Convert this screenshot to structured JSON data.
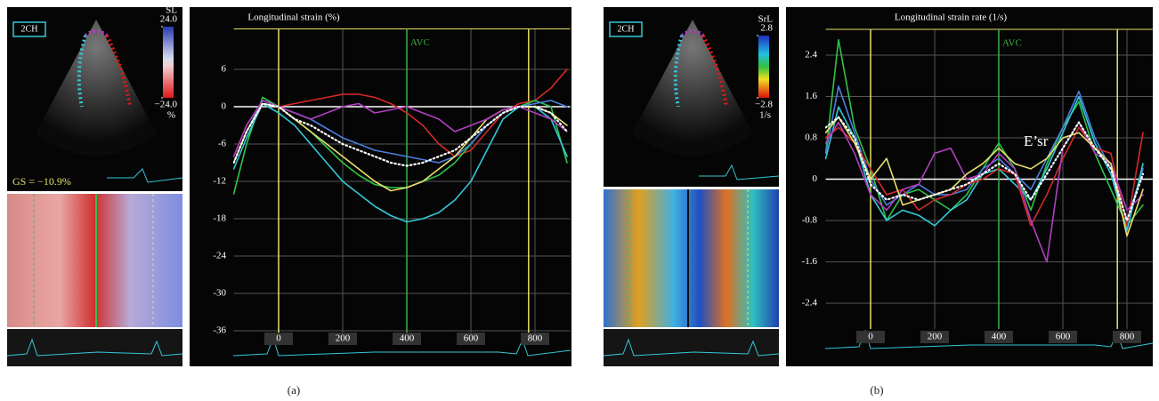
{
  "chart_data": [
    {
      "type": "line",
      "title": "Longitudinal strain (%)",
      "caption": "(a)",
      "view_label": "2CH",
      "annotation": "GS = −10.9%",
      "colorbar": {
        "title": "SL",
        "unit": "%",
        "ticks": [
          {
            "value": 24,
            "label": "24.0"
          },
          {
            "value": -24,
            "label": "−24.0"
          }
        ]
      },
      "xlim": [
        -140,
        910
      ],
      "ylim": [
        -37,
        12.5
      ],
      "xticks": [
        0,
        200,
        400,
        600,
        800
      ],
      "yticks": [
        6,
        0,
        -6,
        -12,
        -18,
        -24,
        -30,
        -36
      ],
      "grid": true,
      "vlines": [
        {
          "value": 0,
          "color": "#e6df6a"
        },
        {
          "value": 780,
          "color": "#e6df6a"
        },
        {
          "value": 400,
          "color": "#3cb043",
          "label": "AVC"
        }
      ],
      "x": [
        -140,
        -100,
        -50,
        0,
        50,
        100,
        150,
        200,
        250,
        300,
        350,
        400,
        450,
        500,
        550,
        600,
        650,
        700,
        750,
        800,
        850,
        900
      ],
      "series": [
        {
          "color": "#d42a2a",
          "values": [
            -8,
            -3,
            1,
            0,
            0.5,
            1,
            1.5,
            2,
            2,
            1.5,
            0.5,
            -1,
            -3,
            -6,
            -8,
            -7,
            -4,
            -1,
            0.5,
            1,
            3,
            6
          ]
        },
        {
          "color": "#2ec44a",
          "values": [
            -14,
            -6,
            1.5,
            0,
            -2,
            -4,
            -6.5,
            -9,
            -11,
            -12.5,
            -13,
            -13,
            -12,
            -11,
            -9,
            -6,
            -3,
            -1,
            0,
            1,
            0,
            -9
          ]
        },
        {
          "color": "#4a7fe0",
          "values": [
            -9,
            -4,
            1,
            0,
            -1,
            -2,
            -3.5,
            -5,
            -6,
            -7,
            -7.5,
            -8,
            -8.5,
            -9,
            -8,
            -6,
            -3,
            -1,
            0,
            0.5,
            1,
            0
          ]
        },
        {
          "color": "#35c8d8",
          "values": [
            -10,
            -5,
            0.5,
            -1,
            -3,
            -6,
            -9,
            -12,
            -14,
            -16,
            -17.5,
            -18.5,
            -18,
            -17,
            -15,
            -12,
            -7,
            -2,
            0,
            0,
            -2,
            -8
          ]
        },
        {
          "color": "#e8e070",
          "values": [
            -9,
            -4,
            0.5,
            0,
            -2,
            -4,
            -6,
            -8,
            -10,
            -12,
            -13.5,
            -13,
            -12,
            -10,
            -8,
            -5,
            -2,
            -0.5,
            0,
            0,
            -1,
            -3
          ]
        },
        {
          "color": "#b040c0",
          "values": [
            -8,
            -3,
            1,
            0,
            -1,
            -2,
            -1,
            0,
            0.5,
            -1,
            -0.5,
            0,
            -1,
            -2,
            -4,
            -3,
            -2,
            -0.5,
            0,
            -1,
            -2,
            -4
          ]
        },
        {
          "color": "#ffffff",
          "dotted": true,
          "values": [
            -9,
            -4,
            0.5,
            0,
            -2,
            -3,
            -4.5,
            -6,
            -7,
            -8,
            -9,
            -9.5,
            -9,
            -8,
            -7,
            -5,
            -3,
            -1,
            0,
            0,
            -1,
            -4
          ]
        }
      ]
    },
    {
      "type": "line",
      "title": "Longitudinal strain rate (1/s)",
      "caption": "(b)",
      "view_label": "2CH",
      "annotation": "E’sr",
      "colorbar": {
        "title": "SrL",
        "unit": "1/s",
        "ticks": [
          {
            "value": 2.8,
            "label": "2.8"
          },
          {
            "value": -2.8,
            "label": "−2.8"
          }
        ]
      },
      "xlim": [
        -140,
        880
      ],
      "ylim": [
        -2.9,
        2.9
      ],
      "xticks": [
        0,
        200,
        400,
        600,
        800
      ],
      "yticks": [
        2.4,
        1.6,
        0.8,
        0,
        -0.8,
        -1.6,
        -2.4
      ],
      "grid": true,
      "vlines": [
        {
          "value": 0,
          "color": "#e6df6a"
        },
        {
          "value": 770,
          "color": "#e6df6a"
        },
        {
          "value": 400,
          "color": "#3cb043",
          "label": "AVC"
        }
      ],
      "x": [
        -140,
        -100,
        -50,
        0,
        50,
        100,
        150,
        200,
        250,
        300,
        350,
        400,
        450,
        500,
        550,
        600,
        650,
        700,
        750,
        800,
        850
      ],
      "series": [
        {
          "color": "#2ec44a",
          "values": [
            0.5,
            2.7,
            1.0,
            0.2,
            -0.8,
            -0.3,
            -0.2,
            -0.4,
            -0.6,
            -0.3,
            0.2,
            0.7,
            0.2,
            -0.6,
            0.3,
            1.0,
            1.5,
            0.5,
            -0.2,
            -0.9,
            -0.5
          ]
        },
        {
          "color": "#4a7fe0",
          "values": [
            0.5,
            1.8,
            0.9,
            0,
            -0.5,
            -0.3,
            -0.1,
            -0.3,
            -0.3,
            -0.2,
            0.2,
            0.4,
            0.1,
            -0.2,
            0.4,
            1.0,
            1.7,
            0.8,
            0.2,
            -0.8,
            0.2
          ]
        },
        {
          "color": "#35c8d8",
          "values": [
            0.4,
            1.4,
            0.8,
            -0.3,
            -0.8,
            -0.6,
            -0.7,
            -0.9,
            -0.6,
            -0.4,
            0.1,
            0.2,
            -0.1,
            -0.4,
            0.2,
            0.9,
            1.6,
            0.7,
            0.1,
            -1.0,
            0.3
          ]
        },
        {
          "color": "#d42a2a",
          "values": [
            0.8,
            1.0,
            0.7,
            0.2,
            -0.3,
            -0.2,
            -0.6,
            -0.4,
            -0.3,
            -0.1,
            0.0,
            0.2,
            0.1,
            -0.9,
            -0.3,
            0.4,
            1.0,
            0.6,
            0.5,
            -0.9,
            0.9
          ]
        },
        {
          "color": "#b040c0",
          "values": [
            0.7,
            1.1,
            0.5,
            -0.3,
            -0.6,
            -0.2,
            -0.1,
            0.5,
            0.6,
            0.0,
            0.1,
            0.5,
            0.2,
            -0.8,
            -1.6,
            0.6,
            1.1,
            0.5,
            0.3,
            -0.6,
            -0.3
          ]
        },
        {
          "color": "#e8e070",
          "values": [
            0.9,
            1.2,
            0.7,
            0.0,
            0.4,
            -0.5,
            -0.4,
            -0.3,
            -0.2,
            0.1,
            0.3,
            0.6,
            0.3,
            0.2,
            0.4,
            0.8,
            0.9,
            0.6,
            0.3,
            -1.1,
            -0.2
          ]
        },
        {
          "color": "#ffffff",
          "dotted": true,
          "values": [
            1.0,
            1.2,
            0.8,
            -0.1,
            -0.4,
            -0.3,
            -0.4,
            -0.3,
            -0.2,
            -0.1,
            0.1,
            0.3,
            0.1,
            -0.4,
            0.1,
            0.6,
            1.1,
            0.6,
            0.2,
            -0.8,
            0.1
          ]
        }
      ]
    }
  ]
}
